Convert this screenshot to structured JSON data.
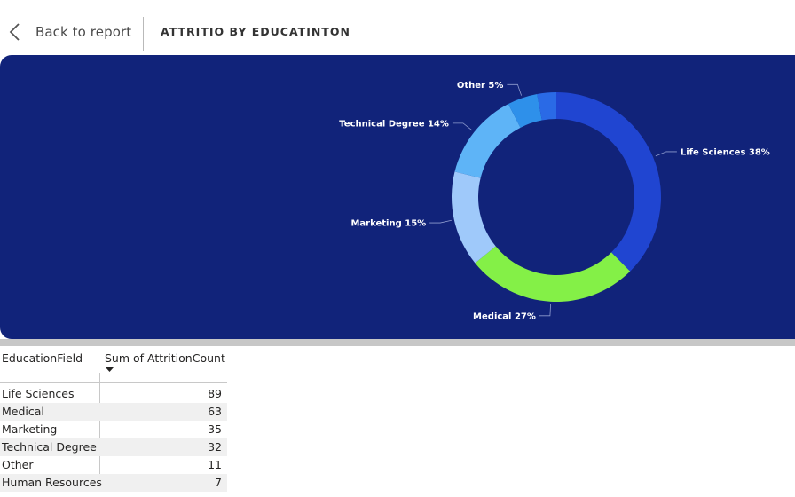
{
  "header": {
    "back_label": "Back to report",
    "title": "ATTRITIO BY EDUCATINTON"
  },
  "colors": {
    "panel_bg": "#11237a"
  },
  "chart_data": {
    "type": "pie",
    "donut": true,
    "categories": [
      "Life Sciences",
      "Medical",
      "Marketing",
      "Technical Degree",
      "Other",
      "Human Resources"
    ],
    "values": [
      89,
      63,
      35,
      32,
      11,
      7
    ],
    "labels": [
      "Life Sciences 38%",
      "Medical 27%",
      "Marketing 15%",
      "Technical Degree 14%",
      "Other 5%",
      ""
    ],
    "colors": [
      "#2045d1",
      "#84f047",
      "#9fc9fa",
      "#5eb4f7",
      "#2e90ea",
      "#2a6ae6"
    ],
    "legend": "none"
  },
  "table": {
    "headers": [
      "EducationField",
      "Sum of AttritionCount"
    ],
    "rows": [
      {
        "field": "Life Sciences",
        "count": "89"
      },
      {
        "field": "Medical",
        "count": "63"
      },
      {
        "field": "Marketing",
        "count": "35"
      },
      {
        "field": "Technical Degree",
        "count": "32"
      },
      {
        "field": "Other",
        "count": "11"
      },
      {
        "field": "Human Resources",
        "count": "7"
      }
    ]
  }
}
